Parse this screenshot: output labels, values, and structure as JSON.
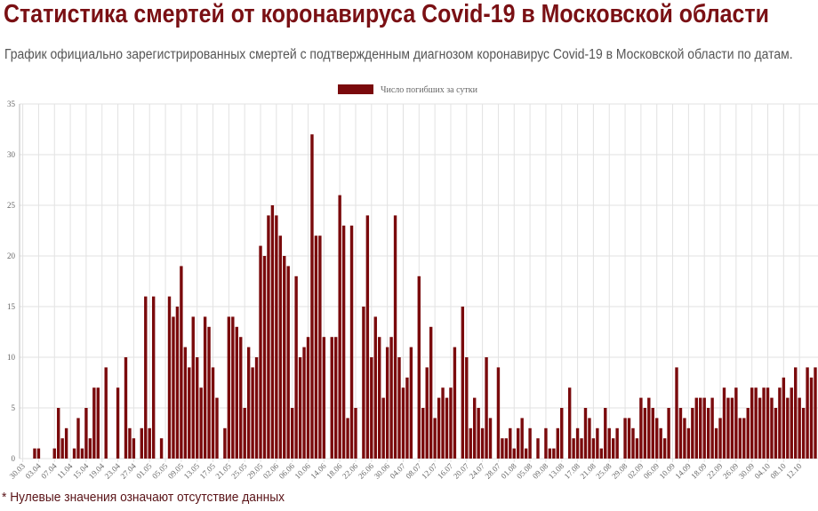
{
  "header": {
    "title": "Статистика смертей от коронавируса Covid-19 в Московской области",
    "subtitle": "График официально зарегистрированных смертей с подтвержденным диагнозом коронавирус Covid-19 в Московской области по датам."
  },
  "footnote": "* Нулевые значения означают отсутствие данных",
  "colors": {
    "bar": "#7a0a0c",
    "title": "#7a1014",
    "grid": "#e2e2e2"
  },
  "chart_data": {
    "type": "bar",
    "title": "",
    "xlabel": "",
    "ylabel": "",
    "ylim": [
      0,
      35
    ],
    "yticks": [
      0,
      5,
      10,
      15,
      20,
      25,
      30,
      35
    ],
    "grid": true,
    "legend_position": "top",
    "series": [
      {
        "name": "Число погибших за сутки",
        "values": [
          0,
          0,
          0,
          1,
          1,
          0,
          0,
          0,
          1,
          5,
          2,
          3,
          0,
          1,
          4,
          1,
          5,
          2,
          7,
          7,
          0,
          9,
          0,
          0,
          7,
          0,
          10,
          3,
          2,
          0,
          3,
          16,
          3,
          16,
          0,
          2,
          0,
          16,
          14,
          15,
          19,
          11,
          9,
          14,
          10,
          7,
          14,
          13,
          9,
          6,
          0,
          3,
          14,
          14,
          13,
          12,
          5,
          11,
          9,
          10,
          21,
          20,
          24,
          25,
          24,
          22,
          20,
          19,
          5,
          18,
          10,
          11,
          12,
          32,
          22,
          22,
          12,
          0,
          12,
          12,
          26,
          23,
          4,
          23,
          5,
          0,
          15,
          24,
          10,
          14,
          12,
          6,
          11,
          12,
          24,
          10,
          7,
          8,
          11,
          0,
          18,
          5,
          9,
          13,
          4,
          6,
          7,
          6,
          7,
          11,
          0,
          15,
          10,
          3,
          6,
          5,
          3,
          10,
          4,
          0,
          9,
          2,
          2,
          3,
          1,
          3,
          4,
          1,
          3,
          0,
          2,
          0,
          3,
          1,
          1,
          3,
          5,
          0,
          7,
          2,
          3,
          2,
          5,
          4,
          2,
          3,
          1,
          5,
          3,
          2,
          3,
          0,
          4,
          4,
          3,
          2,
          6,
          5,
          6,
          5,
          4,
          3,
          2,
          5,
          0,
          9,
          5,
          4,
          3,
          5,
          6,
          6,
          6,
          5,
          6,
          3,
          4,
          7,
          6,
          6,
          7,
          4,
          4,
          5,
          7,
          7,
          6,
          7,
          7,
          6,
          5,
          7,
          8,
          6,
          7,
          9,
          6,
          5,
          9,
          8,
          9
        ]
      }
    ],
    "categories": [
      "30.03",
      "31.03",
      "01.04",
      "02.04",
      "03.04",
      "04.04",
      "05.04",
      "06.04",
      "07.04",
      "08.04",
      "09.04",
      "10.04",
      "11.04",
      "12.04",
      "13.04",
      "14.04",
      "15.04",
      "16.04",
      "17.04",
      "18.04",
      "19.04",
      "20.04",
      "21.04",
      "22.04",
      "23.04",
      "24.04",
      "25.04",
      "26.04",
      "27.04",
      "28.04",
      "29.04",
      "30.04",
      "01.05",
      "02.05",
      "03.05",
      "04.05",
      "05.05",
      "06.05",
      "07.05",
      "08.05",
      "09.05",
      "10.05",
      "11.05",
      "12.05",
      "13.05",
      "14.05",
      "15.05",
      "16.05",
      "17.05",
      "18.05",
      "19.05",
      "20.05",
      "21.05",
      "22.05",
      "23.05",
      "24.05",
      "25.05",
      "26.05",
      "27.05",
      "28.05",
      "29.05",
      "30.05",
      "31.05",
      "01.06",
      "02.06",
      "03.06",
      "04.06",
      "05.06",
      "06.06",
      "07.06",
      "08.06",
      "09.06",
      "10.06",
      "11.06",
      "12.06",
      "13.06",
      "14.06",
      "15.06",
      "16.06",
      "17.06",
      "18.06",
      "19.06",
      "20.06",
      "21.06",
      "22.06",
      "23.06",
      "24.06",
      "25.06",
      "26.06",
      "27.06",
      "28.06",
      "29.06",
      "30.06",
      "01.07",
      "02.07",
      "03.07",
      "04.07",
      "05.07",
      "06.07",
      "07.07",
      "08.07",
      "09.07",
      "10.07",
      "11.07",
      "12.07",
      "13.07",
      "14.07",
      "15.07",
      "16.07",
      "17.07",
      "18.07",
      "19.07",
      "20.07",
      "21.07",
      "22.07",
      "23.07",
      "24.07",
      "25.07",
      "26.07",
      "27.07",
      "28.07",
      "29.07",
      "30.07",
      "31.07",
      "01.08",
      "02.08",
      "03.08",
      "04.08",
      "05.08",
      "06.08",
      "07.08",
      "08.08",
      "09.08",
      "10.08",
      "11.08",
      "12.08",
      "13.08",
      "14.08",
      "15.08",
      "16.08",
      "17.08",
      "18.08",
      "19.08",
      "20.08",
      "21.08",
      "22.08",
      "23.08",
      "24.08",
      "25.08",
      "26.08",
      "27.08",
      "28.08",
      "29.08",
      "30.08",
      "31.08",
      "01.09",
      "02.09",
      "03.09",
      "04.09",
      "05.09",
      "06.09",
      "07.09",
      "08.09",
      "09.09",
      "10.09",
      "11.09",
      "12.09",
      "13.09",
      "14.09",
      "15.09",
      "16.09",
      "17.09",
      "18.09",
      "19.09",
      "20.09",
      "21.09",
      "22.09",
      "23.09",
      "24.09",
      "25.09",
      "26.09",
      "27.09",
      "28.09",
      "29.09",
      "30.09",
      "01.10",
      "02.10",
      "03.10",
      "04.10",
      "05.10",
      "06.10",
      "07.10",
      "08.10",
      "09.10",
      "10.10",
      "11.10",
      "12.10",
      "13.10",
      "14.10",
      "15.10",
      "16.10"
    ],
    "tick_labels": [
      "30.03",
      "03.04",
      "07.04",
      "11.04",
      "15.04",
      "19.04",
      "23.04",
      "27.04",
      "01.05",
      "05.05",
      "09.05",
      "13.05",
      "17.05",
      "21.05",
      "25.05",
      "29.05",
      "02.06",
      "06.06",
      "10.06",
      "14.06",
      "18.06",
      "22.06",
      "26.06",
      "30.06",
      "04.07",
      "08.07",
      "12.07",
      "16.07",
      "20.07",
      "24.07",
      "28.07",
      "01.08",
      "05.08",
      "09.08",
      "13.08",
      "17.08",
      "21.08",
      "25.08",
      "29.08",
      "02.09",
      "06.09",
      "10.09",
      "14.09",
      "18.09",
      "22.09",
      "26.09",
      "30.09",
      "04.10",
      "08.10",
      "12.10"
    ]
  }
}
